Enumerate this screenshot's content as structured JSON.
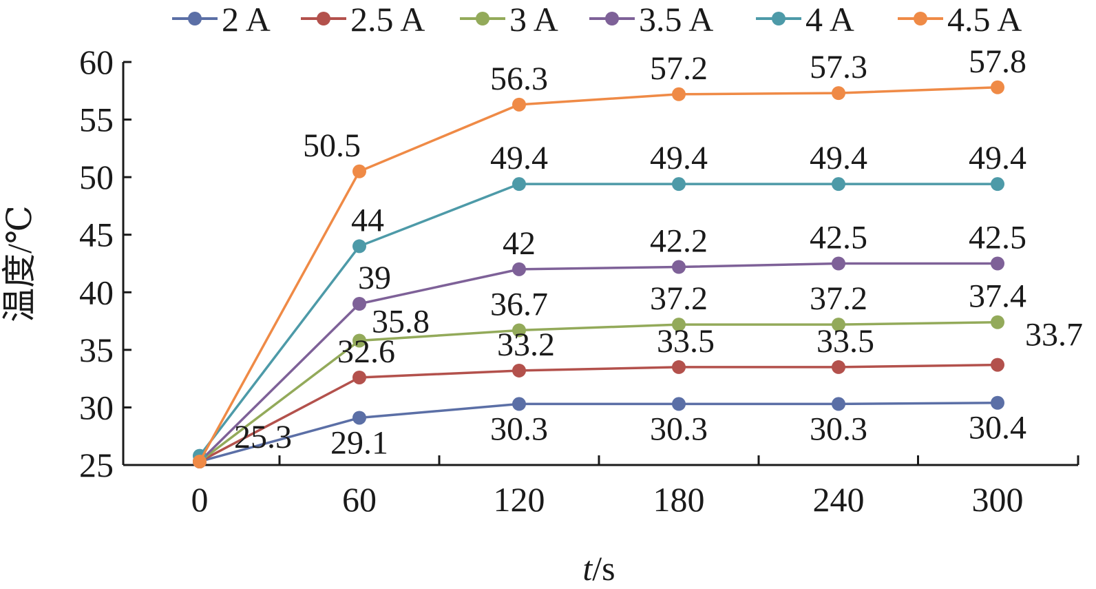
{
  "chart_data": {
    "type": "line",
    "title": "",
    "xlabel_italic": "t",
    "xlabel_unit": "/s",
    "ylabel": "温度/℃",
    "x": [
      0,
      60,
      120,
      180,
      240,
      300
    ],
    "x_tick_labels": [
      "0",
      "60",
      "120",
      "180",
      "240",
      "300"
    ],
    "y_tick_labels": [
      "25",
      "30",
      "35",
      "40",
      "45",
      "50",
      "55",
      "60"
    ],
    "ylim": [
      25,
      60
    ],
    "y_step": 5,
    "grid": false,
    "legend_position": "top",
    "series": [
      {
        "name": "2 A",
        "color": "#5b6fa6",
        "values": [
          25.3,
          29.1,
          30.3,
          30.3,
          30.3,
          30.4
        ],
        "labels": [
          "25.3",
          "29.1",
          "30.3",
          "30.3",
          "30.3",
          "30.4"
        ]
      },
      {
        "name": "2.5 A",
        "color": "#b3514c",
        "values": [
          25.3,
          32.6,
          33.2,
          33.5,
          33.5,
          33.7
        ],
        "labels": [
          "",
          "32.6",
          "33.2",
          "33.5",
          "33.5",
          "33.7"
        ]
      },
      {
        "name": "3 A",
        "color": "#93aa5a",
        "values": [
          25.3,
          35.8,
          36.7,
          37.2,
          37.2,
          37.4
        ],
        "labels": [
          "",
          "35.8",
          "36.7",
          "37.2",
          "37.2",
          "37.4"
        ]
      },
      {
        "name": "3.5 A",
        "color": "#7e6198",
        "values": [
          25.3,
          39,
          42,
          42.2,
          42.5,
          42.5
        ],
        "labels": [
          "",
          "39",
          "42",
          "42.2",
          "42.5",
          "42.5"
        ]
      },
      {
        "name": "4 A",
        "color": "#4d9aa8",
        "values": [
          25.8,
          44,
          49.4,
          49.4,
          49.4,
          49.4
        ],
        "labels": [
          "",
          "44",
          "49.4",
          "49.4",
          "49.4",
          "49.4"
        ]
      },
      {
        "name": "4.5 A",
        "color": "#ef8a46",
        "values": [
          25.3,
          50.5,
          56.3,
          57.2,
          57.3,
          57.8
        ],
        "labels": [
          "",
          "50.5",
          "56.3",
          "57.2",
          "57.3",
          "57.8"
        ]
      }
    ]
  }
}
